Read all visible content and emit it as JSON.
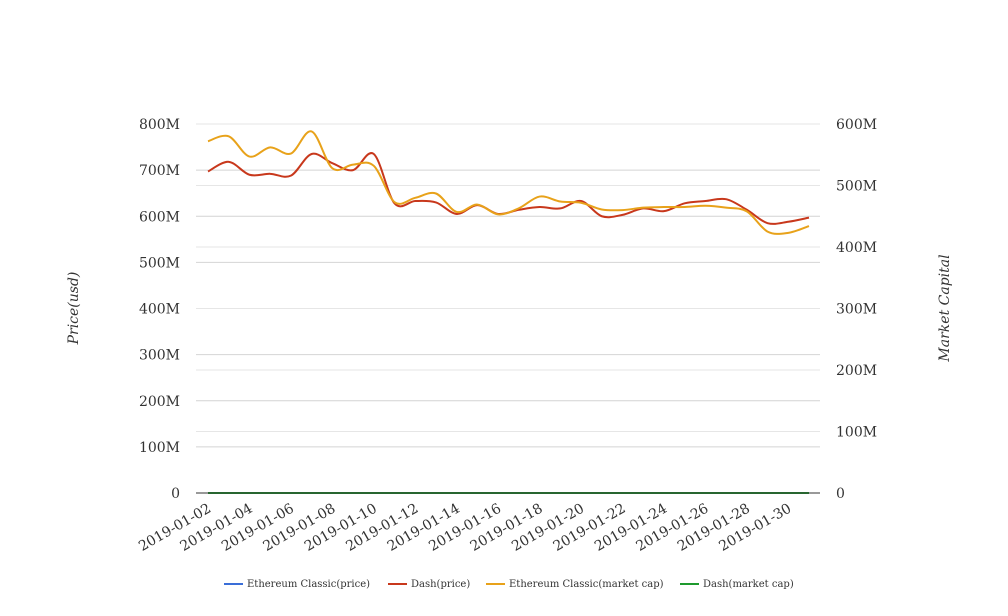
{
  "chart_data": {
    "type": "line",
    "title": "",
    "xlabel": "",
    "ylabel": "Price(usd)",
    "y2label": "Market Capital",
    "x": [
      "2019-01-02",
      "2019-01-03",
      "2019-01-04",
      "2019-01-05",
      "2019-01-06",
      "2019-01-07",
      "2019-01-08",
      "2019-01-09",
      "2019-01-10",
      "2019-01-11",
      "2019-01-12",
      "2019-01-13",
      "2019-01-14",
      "2019-01-15",
      "2019-01-16",
      "2019-01-17",
      "2019-01-18",
      "2019-01-19",
      "2019-01-20",
      "2019-01-21",
      "2019-01-22",
      "2019-01-23",
      "2019-01-24",
      "2019-01-25",
      "2019-01-26",
      "2019-01-27",
      "2019-01-28",
      "2019-01-29",
      "2019-01-30",
      "2019-01-31"
    ],
    "xticks": [
      "2019-01-02",
      "2019-01-04",
      "2019-01-06",
      "2019-01-08",
      "2019-01-10",
      "2019-01-12",
      "2019-01-14",
      "2019-01-16",
      "2019-01-18",
      "2019-01-20",
      "2019-01-22",
      "2019-01-24",
      "2019-01-26",
      "2019-01-28",
      "2019-01-30"
    ],
    "ylim": [
      0,
      800000000
    ],
    "y2lim": [
      0,
      600000000
    ],
    "yticks": [
      "0",
      "100M",
      "200M",
      "300M",
      "400M",
      "500M",
      "600M",
      "700M",
      "800M"
    ],
    "y2ticks": [
      "0",
      "100M",
      "200M",
      "300M",
      "400M",
      "500M",
      "600M"
    ],
    "legend_position": "bottom",
    "grid": true,
    "series": [
      {
        "name": "Ethereum Classic(price)",
        "axis": "left",
        "color": "#3a6ed8",
        "values": [
          5,
          5,
          5,
          5,
          5,
          5,
          5,
          5,
          5,
          5,
          5,
          5,
          5,
          5,
          5,
          5,
          5,
          5,
          5,
          5,
          5,
          5,
          5,
          5,
          5,
          5,
          5,
          5,
          5,
          5
        ]
      },
      {
        "name": "Dash(price)",
        "axis": "left",
        "color": "#c8381c",
        "values": [
          697000000,
          718000000,
          690000000,
          692000000,
          688000000,
          735000000,
          715000000,
          700000000,
          735000000,
          628000000,
          633000000,
          630000000,
          605000000,
          624000000,
          605000000,
          614000000,
          620000000,
          617000000,
          633000000,
          600000000,
          603000000,
          617000000,
          611000000,
          628000000,
          633000000,
          637000000,
          614000000,
          585000000,
          588000000,
          597000000
        ]
      },
      {
        "name": "Ethereum Classic(market cap)",
        "axis": "right",
        "color": "#e8a21a",
        "values": [
          572000000,
          580000000,
          547000000,
          562000000,
          552000000,
          588000000,
          528000000,
          534000000,
          532000000,
          473000000,
          480000000,
          487000000,
          457000000,
          469000000,
          453000000,
          463000000,
          482000000,
          474000000,
          472000000,
          461000000,
          460000000,
          464000000,
          465000000,
          465000000,
          467000000,
          464000000,
          458000000,
          425000000,
          423000000,
          434000000
        ]
      },
      {
        "name": "Dash(market cap)",
        "axis": "right",
        "color": "#1e9a2e",
        "values": [
          6,
          6,
          6,
          6,
          6,
          6,
          6,
          6,
          6,
          6,
          6,
          6,
          6,
          6,
          6,
          6,
          6,
          6,
          6,
          6,
          6,
          6,
          6,
          6,
          6,
          6,
          6,
          6,
          6,
          6
        ]
      }
    ]
  }
}
